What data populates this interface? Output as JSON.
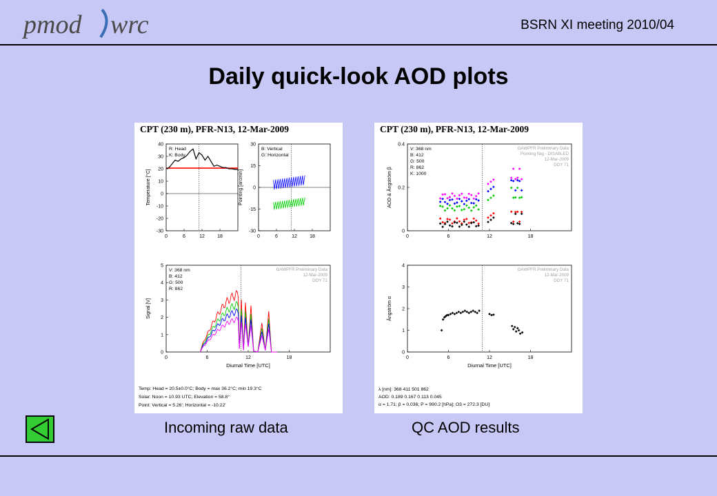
{
  "header": {
    "logo_text": "pmod wrc",
    "meeting": "BSRN XI meeting  2010/04"
  },
  "slide": {
    "title": "Daily quick-look AOD plots",
    "left_caption": "Incoming raw data",
    "right_caption": "QC AOD results"
  },
  "nav": {
    "back_icon": "triangle-left-icon"
  },
  "colors": {
    "background": "#c8c8f6",
    "nav_green": "#33cc33",
    "red": "#ff0000",
    "blue": "#0000ff",
    "green": "#00cc00",
    "magenta": "#ff00ff"
  },
  "panels": {
    "left": {
      "header": "CPT (230 m), PFR-N13, 12-Mar-2009",
      "footer": {
        "temp": "Temp:   Head = 20.5±0.0°C; Body = max 36.2°C; min 19.3°C",
        "solar": "Solar:  Noon = 10.93 UTC; Elevation = 58.8°",
        "point": "Point:  Vertical = 5.26'; Horizontal = -10.22'"
      }
    },
    "right": {
      "header": "CPT (230 m), PFR-N13, 12-Mar-2009",
      "footer": {
        "wl": "λ [nm]:        368     411     501     862",
        "aod": "AOD:         0.189  0.167  0.113  0.045",
        "ang": "α = 1.71; β = 0.036; P = 990.2 [hPa]; O3 = 272.3 [DU]"
      }
    }
  },
  "watermark": {
    "line1": "GAWPFR Preliminary Data",
    "line1b": "Pointing flag - DISABLED",
    "date": "12-Mar-2009",
    "doy": "DOY 71"
  },
  "chart_data": [
    {
      "id": "temperature",
      "type": "line",
      "title": "",
      "xlabel": "",
      "ylabel": "Temperature [°C]",
      "xlim": [
        0,
        24
      ],
      "ylim": [
        -30,
        40
      ],
      "xticks": [
        0,
        6,
        12,
        18
      ],
      "yticks": [
        -30,
        -20,
        -10,
        0,
        10,
        20,
        30,
        40
      ],
      "grid": false,
      "legend": [
        "R: Head",
        "K: Body"
      ],
      "series": [
        {
          "name": "R: Head",
          "color": "#ff0000",
          "x": [
            0,
            24
          ],
          "y": [
            20.5,
            20.5
          ]
        },
        {
          "name": "K: Body",
          "color": "#000000",
          "x": [
            0,
            1,
            2,
            3,
            4,
            5,
            6,
            7,
            8,
            9,
            10,
            11,
            12,
            13,
            14,
            15,
            16,
            17,
            18,
            19,
            20,
            21,
            22,
            23,
            24
          ],
          "y": [
            20,
            21,
            24,
            27,
            26,
            28,
            29,
            31,
            34,
            36,
            28,
            33,
            31,
            27,
            30,
            26,
            22,
            23,
            22,
            21,
            21,
            20,
            20,
            19.5,
            19.5
          ]
        }
      ]
    },
    {
      "id": "pointing",
      "type": "line",
      "ylabel": "Pointing [arcmin]",
      "xlim": [
        0,
        24
      ],
      "ylim": [
        -30,
        30
      ],
      "xticks": [
        0,
        6,
        12,
        18
      ],
      "yticks": [
        -30,
        -15,
        0,
        15,
        30
      ],
      "legend": [
        "B: Vertical",
        "G: Horizontal"
      ],
      "series": [
        {
          "name": "B: Vertical",
          "color": "#0000ff",
          "x_range": [
            5,
            15.5
          ],
          "y_level": 5,
          "amplitude": 5
        },
        {
          "name": "G: Horizontal",
          "color": "#00cc00",
          "x_range": [
            5,
            15.5
          ],
          "y_level": -10,
          "amplitude": 4
        }
      ]
    },
    {
      "id": "signal",
      "type": "line",
      "xlabel": "Diurnal Time [UTC]",
      "ylabel": "Signal [V]",
      "xlim": [
        0,
        24
      ],
      "ylim": [
        0,
        5
      ],
      "xticks": [
        0,
        6,
        12,
        18
      ],
      "yticks": [
        0,
        1,
        2,
        3,
        4,
        5
      ],
      "legend": [
        "V: 368 nm",
        "B: 412",
        "G: 500",
        "R: 862"
      ],
      "series": [
        {
          "name": "R: 862",
          "color": "#ff0000",
          "peak": 3.35
        },
        {
          "name": "G: 500",
          "color": "#00cc00",
          "peak": 2.75
        },
        {
          "name": "B: 412",
          "color": "#0000ff",
          "peak": 2.35
        },
        {
          "name": "V: 368 nm",
          "color": "#ff00ff",
          "peak": 1.9
        }
      ]
    },
    {
      "id": "aod",
      "type": "scatter",
      "ylabel": "AOD & Ångström β",
      "xlim": [
        0,
        24
      ],
      "ylim": [
        0,
        0.4
      ],
      "xticks": [
        0,
        6,
        12,
        18
      ],
      "yticks": [
        0,
        0.2,
        0.4
      ],
      "legend": [
        "V: 368 nm",
        "B: 412",
        "G: 500",
        "R: 862",
        "K: 1000"
      ],
      "series": [
        {
          "name": "V: 368 nm",
          "color": "#ff00ff",
          "level": 0.16
        },
        {
          "name": "B: 412",
          "color": "#0000ff",
          "level": 0.135
        },
        {
          "name": "G: 500",
          "color": "#00cc00",
          "level": 0.105
        },
        {
          "name": "R: 862",
          "color": "#ff0000",
          "level": 0.045
        },
        {
          "name": "K: 1000",
          "color": "#000000",
          "level": 0.03
        }
      ]
    },
    {
      "id": "angstrom",
      "type": "scatter",
      "xlabel": "Diurnal Time [UTC]",
      "ylabel": "Ångström α",
      "xlim": [
        0,
        24
      ],
      "ylim": [
        0,
        4
      ],
      "xticks": [
        0,
        6,
        12,
        18
      ],
      "yticks": [
        0,
        1,
        2,
        3,
        4
      ],
      "series": [
        {
          "name": "alpha",
          "color": "#000000",
          "x": [
            5.0,
            5.2,
            5.4,
            5.6,
            5.8,
            6.0,
            6.3,
            6.6,
            6.9,
            7.2,
            7.5,
            7.8,
            8.1,
            8.4,
            8.7,
            9.0,
            9.3,
            9.6,
            9.9,
            10.2,
            10.5,
            12.0,
            12.3,
            12.6,
            15.3,
            15.5,
            15.7,
            15.9,
            16.1,
            16.3,
            16.5,
            16.8
          ],
          "y": [
            1.0,
            1.5,
            1.6,
            1.65,
            1.7,
            1.7,
            1.75,
            1.8,
            1.75,
            1.8,
            1.85,
            1.8,
            1.85,
            1.9,
            1.85,
            1.8,
            1.85,
            1.9,
            1.85,
            1.8,
            1.9,
            1.75,
            1.7,
            1.72,
            1.2,
            1.05,
            1.15,
            0.95,
            1.1,
            1.0,
            0.85,
            0.9
          ]
        }
      ]
    }
  ]
}
